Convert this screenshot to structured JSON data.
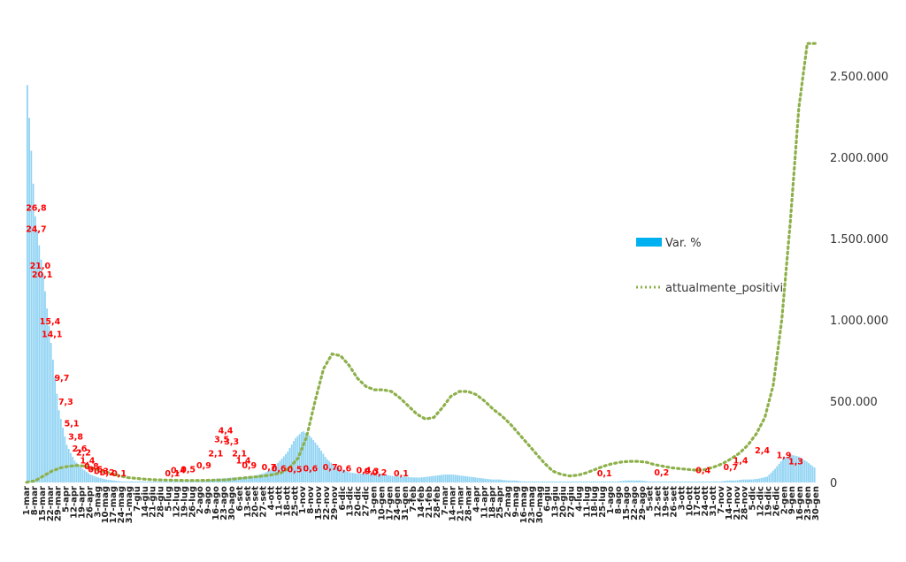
{
  "chart_data": {
    "type": "bar+line",
    "title": "",
    "xlabel": "",
    "ylabel": "",
    "legend": {
      "placement": "right",
      "entries": [
        {
          "label": "Var. %",
          "marker": "bar"
        },
        {
          "label": "attualmente_positivi",
          "marker": "dotted-line"
        }
      ]
    },
    "colors": {
      "bars": "#00B0F0",
      "bars_fill": "#8fd3f3",
      "line": "#8DB04A",
      "labels": "#FF0000",
      "axis_text": "#333333"
    },
    "y_axis": {
      "side": "right",
      "range": [
        0,
        2750000
      ],
      "ticks": [
        0,
        500000,
        1000000,
        1500000,
        2000000,
        2500000
      ],
      "tick_labels": [
        "0",
        "500.000",
        "1.000.000",
        "1.500.000",
        "2.000.000",
        "2.500.000"
      ]
    },
    "bar_axis": {
      "range": [
        0,
        45
      ],
      "note": "secondary scale, not printed"
    },
    "x_labels": [
      "1-mar",
      "8-mar",
      "15-mar",
      "22-mar",
      "29-mar",
      "5-apr",
      "12-apr",
      "19-apr",
      "26-apr",
      "3-mag",
      "10-mag",
      "17-mag",
      "24-mag",
      "31-mag",
      "7-giu",
      "14-giu",
      "21-giu",
      "28-giu",
      "5-lug",
      "12-lug",
      "19-lug",
      "26-lug",
      "2-ago",
      "9-ago",
      "16-ago",
      "23-ago",
      "30-ago",
      "6-set",
      "13-set",
      "20-set",
      "27-set",
      "4-ott",
      "11-ott",
      "18-ott",
      "25-ott",
      "1-nov",
      "8-nov",
      "15-nov",
      "22-nov",
      "29-nov",
      "6-dic",
      "13-dic",
      "20-dic",
      "27-dic",
      "3-gen",
      "10-gen",
      "17-gen",
      "24-gen",
      "31-gen",
      "7-feb",
      "14-feb",
      "21-feb",
      "28-feb",
      "7-mar",
      "14-mar",
      "21-mar",
      "28-mar",
      "4-apr",
      "11-apr",
      "18-apr",
      "25-apr",
      "2-mag",
      "9-mag",
      "16-mag",
      "23-mag",
      "30-mag",
      "6-giu",
      "13-giu",
      "20-giu",
      "27-giu",
      "4-lug",
      "11-lug",
      "18-lug",
      "25-lug",
      "1-ago",
      "8-ago",
      "15-ago",
      "22-ago",
      "29-ago",
      "5-set",
      "12-set",
      "19-set",
      "26-set",
      "3-ott",
      "10-ott",
      "17-ott",
      "24-ott",
      "31-ott",
      "7-nov",
      "14-nov",
      "21-nov",
      "28-nov",
      "5-dic",
      "12-dic",
      "19-dic",
      "26-dic",
      "2-gen",
      "9-gen",
      "16-gen",
      "23-gen",
      "30-gen"
    ],
    "bar_series": {
      "name": "Var. %",
      "values": [
        40,
        26.8,
        21.0,
        14.1,
        7.3,
        3.8,
        2.2,
        1.4,
        0.8,
        0.5,
        0.3,
        0.2,
        0.1,
        0.1,
        0.1,
        0.1,
        0.1,
        0.1,
        0.1,
        0.1,
        0.1,
        0.1,
        0.1,
        0.2,
        0.4,
        0.4,
        0.5,
        0.5,
        0.6,
        0.7,
        0.9,
        1.3,
        2.1,
        3.0,
        4.4,
        5.2,
        4.6,
        3.6,
        2.4,
        1.7,
        1.3,
        1.0,
        0.9,
        0.9,
        0.8,
        0.9,
        0.7,
        0.6,
        0.6,
        0.5,
        0.5,
        0.6,
        0.7,
        0.8,
        0.8,
        0.7,
        0.6,
        0.5,
        0.4,
        0.3,
        0.3,
        0.2,
        0.2,
        0.1,
        0.1,
        0.1,
        0.1,
        0.1,
        0.1,
        0.1,
        0.1,
        0.1,
        0.1,
        0.1,
        0.1,
        0.1,
        0.2,
        0.2,
        0.2,
        0.1,
        0.1,
        0.1,
        0.1,
        0.1,
        0.1,
        0.1,
        0.1,
        0.1,
        0.1,
        0.2,
        0.2,
        0.3,
        0.3,
        0.4,
        0.6,
        1.4,
        2.4,
        2.8,
        2.6,
        2.1,
        1.5
      ]
    },
    "line_series": {
      "name": "attualmente_positivi",
      "values": [
        1000,
        10000,
        40000,
        70000,
        90000,
        100000,
        105000,
        100000,
        85000,
        70000,
        55000,
        40000,
        30000,
        25000,
        20000,
        17000,
        15000,
        14000,
        13000,
        12500,
        12500,
        13000,
        14000,
        15000,
        18000,
        25000,
        30000,
        35000,
        40000,
        48000,
        60000,
        90000,
        150000,
        280000,
        500000,
        700000,
        790000,
        780000,
        720000,
        640000,
        590000,
        570000,
        570000,
        560000,
        520000,
        470000,
        420000,
        390000,
        400000,
        460000,
        530000,
        560000,
        560000,
        540000,
        500000,
        450000,
        410000,
        360000,
        300000,
        240000,
        180000,
        120000,
        70000,
        50000,
        40000,
        45000,
        60000,
        80000,
        100000,
        115000,
        125000,
        130000,
        130000,
        125000,
        110000,
        100000,
        90000,
        85000,
        80000,
        75000,
        80000,
        95000,
        115000,
        145000,
        180000,
        230000,
        300000,
        400000,
        600000,
        1000000,
        1600000,
        2300000,
        2700000,
        2700000
      ],
      "x_positions_note": "values sampled evenly across the x axis"
    },
    "data_labels": [
      "26,8",
      "24,7",
      "21,0",
      "20,1",
      "15,4",
      "14,1",
      "9,7",
      "7,3",
      "5,1",
      "3,8",
      "2,6",
      "2,2",
      "1,4",
      "0,8",
      "0,5",
      "0,3",
      "0,2",
      "0,1",
      "0,1",
      "0,4",
      "0,5",
      "0,9",
      "2,1",
      "3,5",
      "4,4",
      "3,3",
      "2,1",
      "1,4",
      "0,9",
      "0,7",
      "0,6",
      "0,5",
      "0,6",
      "0,7",
      "0,6",
      "0,4",
      "0,3",
      "0,2",
      "0,1",
      "0,1",
      "0,2",
      "0,4",
      "0,7",
      "1,4",
      "2,4",
      "1,9",
      "1,3"
    ],
    "data_label_bar_index": [
      4,
      4,
      6,
      7,
      11,
      12,
      17,
      19,
      22,
      24,
      26,
      28,
      30,
      32,
      34,
      37,
      40,
      46,
      73,
      76,
      81,
      89,
      95,
      98,
      100,
      103,
      107,
      109,
      112,
      122,
      127,
      135,
      143,
      153,
      160,
      170,
      174,
      178,
      189,
      292,
      321,
      342,
      356,
      361,
      372,
      383,
      389
    ],
    "data_label_values": [
      26.8,
      24.7,
      21.0,
      20.1,
      15.4,
      14.1,
      9.7,
      7.3,
      5.1,
      3.8,
      2.6,
      2.2,
      1.4,
      0.8,
      0.5,
      0.3,
      0.2,
      0.1,
      0.1,
      0.4,
      0.5,
      0.9,
      2.1,
      3.5,
      4.4,
      3.3,
      2.1,
      1.4,
      0.9,
      0.7,
      0.6,
      0.5,
      0.6,
      0.7,
      0.6,
      0.4,
      0.3,
      0.2,
      0.1,
      0.1,
      0.2,
      0.4,
      0.7,
      1.4,
      2.4,
      1.9,
      1.3
    ]
  }
}
